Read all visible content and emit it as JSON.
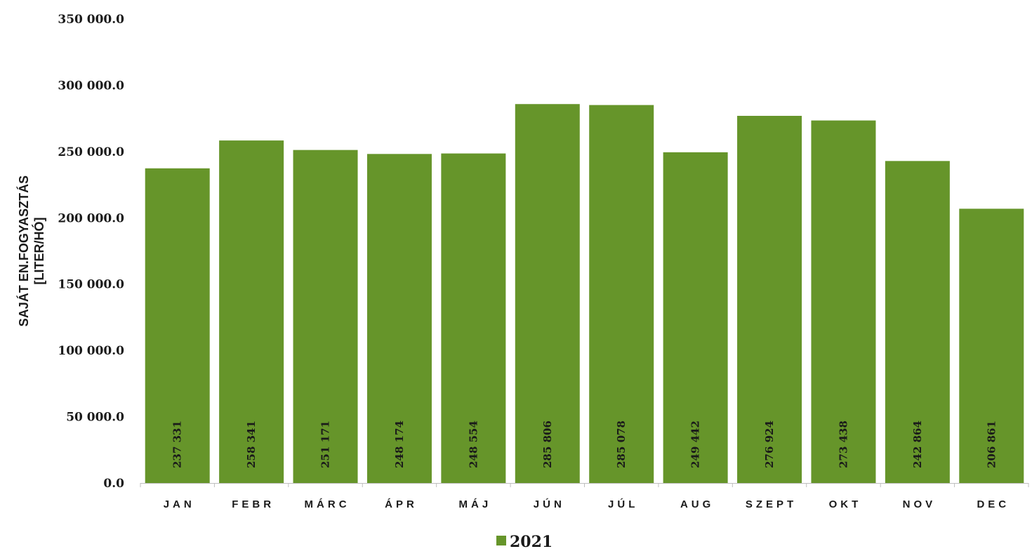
{
  "chart_data": {
    "type": "bar",
    "categories": [
      "JAN",
      "FEBR",
      "MÁRC",
      "ÁPR",
      "MÁJ",
      "JÚN",
      "JÚL",
      "AUG",
      "SZEPT",
      "OKT",
      "NOV",
      "DEC"
    ],
    "series": [
      {
        "name": "2021",
        "color": "#66952a",
        "values": [
          237331,
          258341,
          251171,
          248174,
          248554,
          285806,
          285078,
          249442,
          276924,
          273438,
          242864,
          206861
        ],
        "data_labels": [
          "237 331",
          "258 341",
          "251 171",
          "248 174",
          "248 554",
          "285 806",
          "285 078",
          "249 442",
          "276 924",
          "273 438",
          "242 864",
          "206 861"
        ]
      }
    ],
    "ylabel_lines": [
      "SAJÁT EN.FOGYASZTÁS",
      "[LITER/HÓ]"
    ],
    "ylim": [
      0,
      350000
    ],
    "yticks": [
      0,
      50000,
      100000,
      150000,
      200000,
      250000,
      300000,
      350000
    ],
    "ytick_labels": [
      "0.0",
      "50 000.0",
      "100 000.0",
      "150 000.0",
      "200 000.0",
      "250 000.0",
      "300 000.0",
      "350 000.0"
    ],
    "grid": false,
    "legend": "bottom-center"
  }
}
